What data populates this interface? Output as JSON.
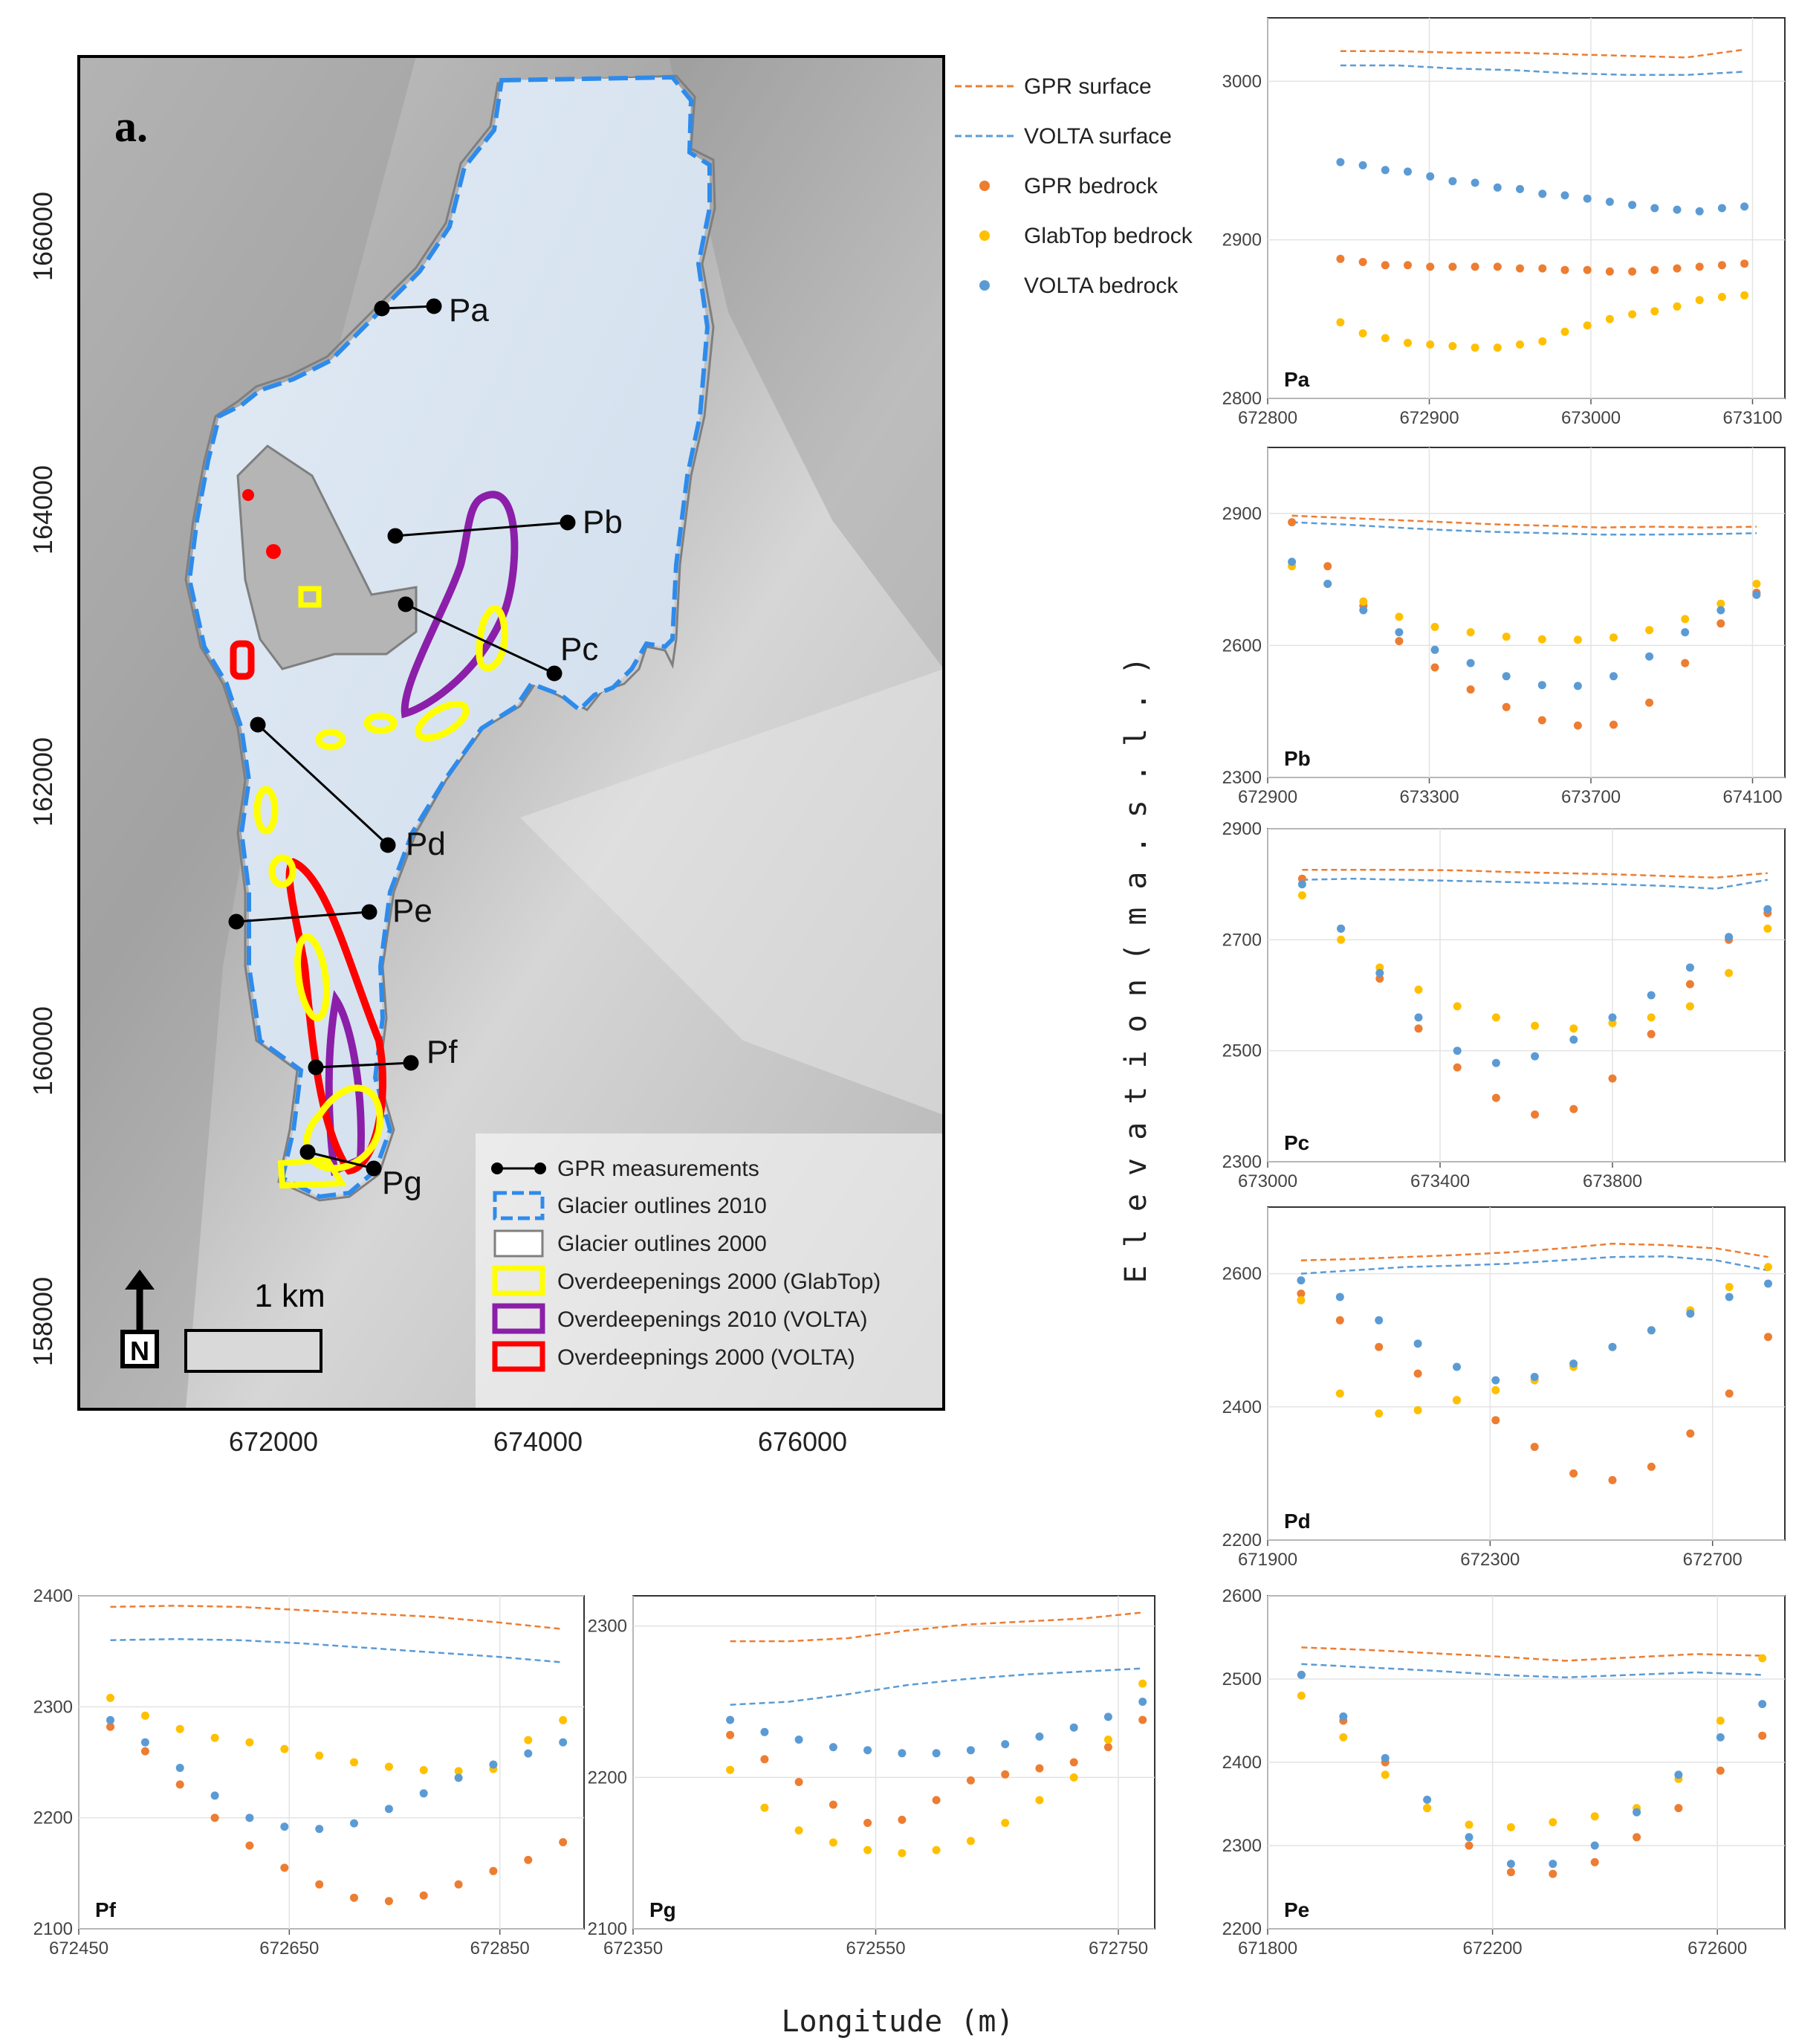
{
  "colors": {
    "gpr": "#ED7D31",
    "volta": "#5B9BD5",
    "glabtop": "#FFC000",
    "yellow_outline": "#FFFF00",
    "purple_outline": "#8B1FA9",
    "red_outline": "#FF0000",
    "outline2010": "#2E8BEB",
    "outline2000": "#888888",
    "glacier_fill": "#E4EEF8",
    "relief": "#B8B8B8"
  },
  "map": {
    "panel_label": "a.",
    "y_ticks": [
      "166000",
      "164000",
      "162000",
      "160000",
      "158000"
    ],
    "x_ticks": [
      "672000",
      "674000",
      "676000"
    ],
    "profiles": [
      "Pa",
      "Pb",
      "Pc",
      "Pd",
      "Pe",
      "Pf",
      "Pg"
    ],
    "scale_label": "1 km",
    "north_label": "N",
    "legend": [
      {
        "key": "gpr_measurements",
        "label": "GPR measurements"
      },
      {
        "key": "outlines_2010",
        "label": "Glacier outlines 2010"
      },
      {
        "key": "outlines_2000",
        "label": "Glacier outlines 2000"
      },
      {
        "key": "od_glabtop",
        "label": "Overdeepenings 2000 (GlabTop)"
      },
      {
        "key": "od_volta2010",
        "label": "Overdeepenings 2010 (VOLTA)"
      },
      {
        "key": "od_volta2000",
        "label": "Overdeepnings 2000 (VOLTA)"
      }
    ]
  },
  "legend": {
    "gpr_surface": "GPR surface",
    "volta_surface": "VOLTA surface",
    "gpr_bedrock": "GPR bedrock",
    "glabtop_bedrock": "GlabTop bedrock",
    "volta_bedrock": "VOLTA bedrock"
  },
  "axes": {
    "y_label": "E l e v a t i o n   ( m   a . s . l . )",
    "x_label": "Longitude (m)"
  },
  "chart_data": [
    {
      "type": "line",
      "name": "Pa",
      "title": "Pa",
      "xlim": [
        672800,
        673120
      ],
      "ylim": [
        2800,
        3040
      ],
      "x_ticks": [
        672800,
        672900,
        673000,
        673100
      ],
      "y_ticks": [
        2800,
        2900,
        3000
      ],
      "x_tick_labels": [
        "672800",
        "672900",
        "673000",
        "673100"
      ],
      "y_tick_labels": [
        "2800",
        "2900",
        "3000"
      ],
      "x_start": 672845,
      "x_end": 673095,
      "series": [
        {
          "name": "GPR surface",
          "kind": "dashed",
          "color": "#ED7D31",
          "values": [
            3019,
            3019,
            3018,
            3018,
            3017,
            3016,
            3015,
            3020
          ]
        },
        {
          "name": "VOLTA surface",
          "kind": "dashed",
          "color": "#5B9BD5",
          "values": [
            3010,
            3010,
            3008,
            3007,
            3005,
            3004,
            3004,
            3006
          ]
        },
        {
          "name": "GPR bedrock",
          "kind": "dots",
          "color": "#ED7D31",
          "values": [
            2888,
            2886,
            2884,
            2884,
            2883,
            2883,
            2883,
            2883,
            2882,
            2882,
            2881,
            2881,
            2880,
            2880,
            2881,
            2882,
            2883,
            2884,
            2885
          ]
        },
        {
          "name": "GlabTop bedrock",
          "kind": "dots",
          "color": "#FFC000",
          "values": [
            2848,
            2841,
            2838,
            2835,
            2834,
            2833,
            2832,
            2832,
            2834,
            2836,
            2842,
            2846,
            2850,
            2853,
            2855,
            2858,
            2862,
            2864,
            2865
          ]
        },
        {
          "name": "VOLTA bedrock",
          "kind": "dots",
          "color": "#5B9BD5",
          "values": [
            2949,
            2947,
            2944,
            2943,
            2940,
            2937,
            2936,
            2933,
            2932,
            2929,
            2928,
            2926,
            2924,
            2922,
            2920,
            2919,
            2918,
            2920,
            2921
          ]
        }
      ]
    },
    {
      "type": "line",
      "name": "Pb",
      "title": "Pb",
      "xlim": [
        672900,
        674180
      ],
      "ylim": [
        2300,
        3050
      ],
      "x_ticks": [
        672900,
        673300,
        673700,
        674100
      ],
      "y_ticks": [
        2300,
        2600,
        2900
      ],
      "x_tick_labels": [
        "672900",
        "673300",
        "673700",
        "674100"
      ],
      "y_tick_labels": [
        "2300",
        "2600",
        "2900"
      ],
      "x_start": 672960,
      "x_end": 674110,
      "series": [
        {
          "name": "GPR surface",
          "kind": "dashed",
          "color": "#ED7D31",
          "values": [
            2895,
            2890,
            2885,
            2880,
            2875,
            2872,
            2868,
            2870,
            2868,
            2870
          ]
        },
        {
          "name": "VOLTA surface",
          "kind": "dashed",
          "color": "#5B9BD5",
          "values": [
            2880,
            2875,
            2868,
            2862,
            2858,
            2855,
            2852,
            2852,
            2853,
            2855
          ]
        },
        {
          "name": "GPR bedrock",
          "kind": "dots",
          "color": "#ED7D31",
          "values": [
            2880,
            2780,
            2690,
            2610,
            2550,
            2500,
            2460,
            2430,
            2418,
            2420,
            2470,
            2560,
            2650,
            2720
          ]
        },
        {
          "name": "GlabTop bedrock",
          "kind": "dots",
          "color": "#FFC000",
          "values": [
            2780,
            2740,
            2700,
            2665,
            2642,
            2630,
            2620,
            2614,
            2613,
            2618,
            2635,
            2660,
            2695,
            2740
          ]
        },
        {
          "name": "VOLTA bedrock",
          "kind": "dots",
          "color": "#5B9BD5",
          "values": [
            2790,
            2740,
            2680,
            2630,
            2590,
            2560,
            2530,
            2510,
            2508,
            2530,
            2575,
            2630,
            2680,
            2715
          ]
        }
      ]
    },
    {
      "type": "line",
      "name": "Pc",
      "title": "Pc",
      "xlim": [
        673000,
        674200
      ],
      "ylim": [
        2300,
        2900
      ],
      "x_ticks": [
        673000,
        673400,
        673800
      ],
      "y_ticks": [
        2300,
        2500,
        2700,
        2900
      ],
      "x_tick_labels": [
        "673000",
        "673400",
        "673800"
      ],
      "y_tick_labels": [
        "2300",
        "2500",
        "2700",
        "2900"
      ],
      "x_start": 673080,
      "x_end": 674160,
      "series": [
        {
          "name": "GPR surface",
          "kind": "dashed",
          "color": "#ED7D31",
          "values": [
            2826,
            2826,
            2826,
            2825,
            2822,
            2820,
            2818,
            2815,
            2812,
            2820
          ]
        },
        {
          "name": "VOLTA surface",
          "kind": "dashed",
          "color": "#5B9BD5",
          "values": [
            2808,
            2810,
            2808,
            2806,
            2804,
            2802,
            2800,
            2797,
            2792,
            2808
          ]
        },
        {
          "name": "GPR bedrock",
          "kind": "dots",
          "color": "#ED7D31",
          "values": [
            2810,
            2720,
            2630,
            2540,
            2470,
            2415,
            2385,
            2395,
            2450,
            2530,
            2620,
            2700,
            2748
          ]
        },
        {
          "name": "GlabTop bedrock",
          "kind": "dots",
          "color": "#FFC000",
          "values": [
            2780,
            2700,
            2650,
            2610,
            2580,
            2560,
            2545,
            2540,
            2550,
            2560,
            2580,
            2640,
            2720
          ]
        },
        {
          "name": "VOLTA bedrock",
          "kind": "dots",
          "color": "#5B9BD5",
          "values": [
            2800,
            2720,
            2640,
            2560,
            2500,
            2478,
            2490,
            2520,
            2560,
            2600,
            2650,
            2705,
            2755
          ]
        }
      ]
    },
    {
      "type": "line",
      "name": "Pd",
      "title": "Pd",
      "xlim": [
        671900,
        672830
      ],
      "ylim": [
        2200,
        2700
      ],
      "x_ticks": [
        671900,
        672300,
        672700
      ],
      "y_ticks": [
        2200,
        2400,
        2600
      ],
      "x_tick_labels": [
        "671900",
        "672300",
        "672700"
      ],
      "y_tick_labels": [
        "2200",
        "2400",
        "2600"
      ],
      "x_start": 671960,
      "x_end": 672800,
      "series": [
        {
          "name": "GPR surface",
          "kind": "dashed",
          "color": "#ED7D31",
          "values": [
            2620,
            2622,
            2625,
            2628,
            2632,
            2638,
            2645,
            2643,
            2638,
            2625
          ]
        },
        {
          "name": "VOLTA surface",
          "kind": "dashed",
          "color": "#5B9BD5",
          "values": [
            2600,
            2605,
            2610,
            2612,
            2615,
            2620,
            2625,
            2626,
            2620,
            2605
          ]
        },
        {
          "name": "GPR bedrock",
          "kind": "dots",
          "color": "#ED7D31",
          "values": [
            2570,
            2530,
            2490,
            2450,
            2410,
            2380,
            2340,
            2300,
            2290,
            2310,
            2360,
            2420,
            2505
          ]
        },
        {
          "name": "GlabTop bedrock",
          "kind": "dots",
          "color": "#FFC000",
          "values": [
            2560,
            2420,
            2390,
            2395,
            2410,
            2425,
            2440,
            2460,
            2490,
            2515,
            2545,
            2580,
            2610
          ]
        },
        {
          "name": "VOLTA bedrock",
          "kind": "dots",
          "color": "#5B9BD5",
          "values": [
            2590,
            2565,
            2530,
            2495,
            2460,
            2440,
            2445,
            2465,
            2490,
            2515,
            2540,
            2565,
            2585
          ]
        }
      ]
    },
    {
      "type": "line",
      "name": "Pf",
      "title": "Pf",
      "xlim": [
        672450,
        672930
      ],
      "ylim": [
        2100,
        2400
      ],
      "x_ticks": [
        672450,
        672650,
        672850
      ],
      "y_ticks": [
        2100,
        2200,
        2300,
        2400
      ],
      "x_tick_labels": [
        "672450",
        "672650",
        "672850"
      ],
      "y_tick_labels": [
        "2100",
        "2200",
        "2300",
        "2400"
      ],
      "x_start": 672480,
      "x_end": 672910,
      "series": [
        {
          "name": "GPR surface",
          "kind": "dashed",
          "color": "#ED7D31",
          "values": [
            2390,
            2391,
            2390,
            2387,
            2384,
            2381,
            2376,
            2370
          ]
        },
        {
          "name": "VOLTA surface",
          "kind": "dashed",
          "color": "#5B9BD5",
          "values": [
            2360,
            2361,
            2360,
            2357,
            2353,
            2349,
            2345,
            2340
          ]
        },
        {
          "name": "GPR bedrock",
          "kind": "dots",
          "color": "#ED7D31",
          "values": [
            2282,
            2260,
            2230,
            2200,
            2175,
            2155,
            2140,
            2128,
            2125,
            2130,
            2140,
            2152,
            2162,
            2178
          ]
        },
        {
          "name": "GlabTop bedrock",
          "kind": "dots",
          "color": "#FFC000",
          "values": [
            2308,
            2292,
            2280,
            2272,
            2268,
            2262,
            2256,
            2250,
            2246,
            2243,
            2242,
            2244,
            2270,
            2288
          ]
        },
        {
          "name": "VOLTA bedrock",
          "kind": "dots",
          "color": "#5B9BD5",
          "values": [
            2288,
            2268,
            2245,
            2220,
            2200,
            2192,
            2190,
            2195,
            2208,
            2222,
            2236,
            2248,
            2258,
            2268
          ]
        }
      ]
    },
    {
      "type": "line",
      "name": "Pg",
      "title": "Pg",
      "xlim": [
        672350,
        672780
      ],
      "ylim": [
        2100,
        2320
      ],
      "x_ticks": [
        672350,
        672550,
        672750
      ],
      "y_ticks": [
        2100,
        2200,
        2300
      ],
      "x_tick_labels": [
        "672350",
        "672550",
        "672750"
      ],
      "y_tick_labels": [
        "2100",
        "2200",
        "2300"
      ],
      "x_start": 672430,
      "x_end": 672770,
      "series": [
        {
          "name": "GPR surface",
          "kind": "dashed",
          "color": "#ED7D31",
          "values": [
            2290,
            2290,
            2292,
            2297,
            2301,
            2303,
            2305,
            2309
          ]
        },
        {
          "name": "VOLTA surface",
          "kind": "dashed",
          "color": "#5B9BD5",
          "values": [
            2248,
            2250,
            2255,
            2261,
            2265,
            2268,
            2270,
            2272
          ]
        },
        {
          "name": "GPR bedrock",
          "kind": "dots",
          "color": "#ED7D31",
          "values": [
            2228,
            2212,
            2197,
            2182,
            2170,
            2172,
            2185,
            2198,
            2202,
            2206,
            2210,
            2220,
            2238
          ]
        },
        {
          "name": "GlabTop bedrock",
          "kind": "dots",
          "color": "#FFC000",
          "values": [
            2205,
            2180,
            2165,
            2157,
            2152,
            2150,
            2152,
            2158,
            2170,
            2185,
            2200,
            2225,
            2262
          ]
        },
        {
          "name": "VOLTA bedrock",
          "kind": "dots",
          "color": "#5B9BD5",
          "values": [
            2238,
            2230,
            2225,
            2220,
            2218,
            2216,
            2216,
            2218,
            2222,
            2227,
            2233,
            2240,
            2250
          ]
        }
      ]
    },
    {
      "type": "line",
      "name": "Pe",
      "title": "Pe",
      "xlim": [
        671800,
        672720
      ],
      "ylim": [
        2200,
        2600
      ],
      "x_ticks": [
        671800,
        672200,
        672600
      ],
      "y_ticks": [
        2200,
        2300,
        2400,
        2500,
        2600
      ],
      "x_tick_labels": [
        "671800",
        "672200",
        "672600"
      ],
      "y_tick_labels": [
        "2200",
        "2300",
        "2400",
        "2500",
        "2600"
      ],
      "x_start": 671860,
      "x_end": 672680,
      "series": [
        {
          "name": "GPR surface",
          "kind": "dashed",
          "color": "#ED7D31",
          "values": [
            2538,
            2535,
            2531,
            2527,
            2522,
            2526,
            2530,
            2528
          ]
        },
        {
          "name": "VOLTA surface",
          "kind": "dashed",
          "color": "#5B9BD5",
          "values": [
            2518,
            2514,
            2510,
            2505,
            2502,
            2505,
            2508,
            2505
          ]
        },
        {
          "name": "GPR bedrock",
          "kind": "dots",
          "color": "#ED7D31",
          "values": [
            2505,
            2450,
            2400,
            2345,
            2300,
            2268,
            2266,
            2280,
            2310,
            2345,
            2390,
            2432
          ]
        },
        {
          "name": "GlabTop bedrock",
          "kind": "dots",
          "color": "#FFC000",
          "values": [
            2480,
            2430,
            2385,
            2345,
            2325,
            2322,
            2328,
            2335,
            2345,
            2380,
            2450,
            2525
          ]
        },
        {
          "name": "VOLTA bedrock",
          "kind": "dots",
          "color": "#5B9BD5",
          "values": [
            2505,
            2455,
            2405,
            2355,
            2310,
            2278,
            2278,
            2300,
            2340,
            2385,
            2430,
            2470
          ]
        }
      ]
    }
  ]
}
